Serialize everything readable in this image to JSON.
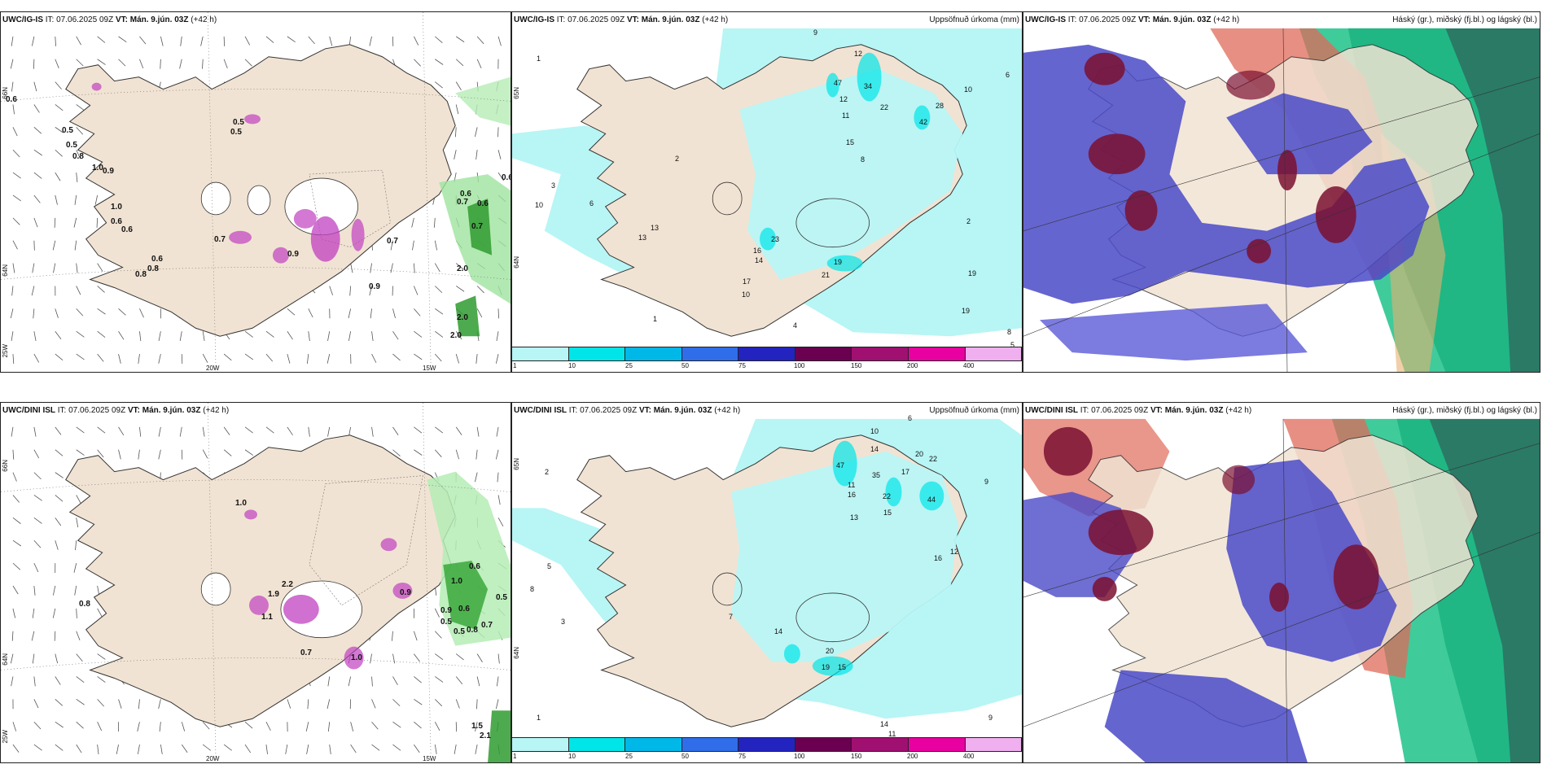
{
  "panels": [
    {
      "id": "top-left",
      "model": "UWC/IG-IS",
      "it": "IT: 07.06.2025 09Z",
      "vt_label": "VT:",
      "vt_value": "Mán. 9.jún. 03Z",
      "lead": "(+42 h)",
      "right_title": "",
      "lon_labels": [
        "20W",
        "15W"
      ],
      "lat_labels": [
        "66N",
        "64N",
        "25W"
      ],
      "values": [
        "0.6",
        "0.5",
        "0.5",
        "0.8",
        "1.0",
        "0.9",
        "1.0",
        "0.6",
        "0.6",
        "0.7",
        "0.6",
        "0.8",
        "0.8",
        "0.5",
        "0.5",
        "0.6",
        "0.7",
        "0.9",
        "0.9",
        "0.6",
        "0.7",
        "0.6",
        "0.7",
        "2.0",
        "2.0",
        "2.0"
      ]
    },
    {
      "id": "top-middle",
      "model": "UWC/IG-IS",
      "it": "IT: 07.06.2025 09Z",
      "vt_label": "VT:",
      "vt_value": "Mán. 9.jún. 03Z",
      "lead": "(+42 h)",
      "right_title": "Uppsöfnuð úrkoma (mm)",
      "lat_labels": [
        "65N",
        "64N"
      ],
      "colorbar_ticks": [
        "1",
        "10",
        "25",
        "50",
        "75",
        "100",
        "150",
        "200",
        "400"
      ],
      "colorbar_colors": [
        "#b8f5f5",
        "#00e5e8",
        "#00b8e8",
        "#2f6ee8",
        "#2323c0",
        "#6b0050",
        "#a01070",
        "#e800a0",
        "#f0b0f0"
      ],
      "values": [
        "9",
        "1",
        "12",
        "10",
        "47",
        "34",
        "22",
        "11",
        "28",
        "42",
        "12",
        "15",
        "8",
        "6",
        "2",
        "10",
        "13",
        "23",
        "16",
        "19",
        "21",
        "19",
        "8",
        "13",
        "17",
        "10",
        "14",
        "19",
        "4",
        "6",
        "3",
        "2",
        "5",
        "1"
      ]
    },
    {
      "id": "top-right",
      "model": "UWC/IG-IS",
      "it": "IT: 07.06.2025 09Z",
      "vt_label": "VT:",
      "vt_value": "Mán. 9.jún. 03Z",
      "lead": "(+42 h)",
      "right_title": "Háský (gr.), miðský (fj.bl.) og lágský (bl.)"
    },
    {
      "id": "bottom-left",
      "model": "UWC/DINI ISL",
      "it": "IT: 07.06.2025 09Z",
      "vt_label": "VT:",
      "vt_value": "Mán. 9.jún. 03Z",
      "lead": "(+42 h)",
      "right_title": "",
      "lon_labels": [
        "20W",
        "15W"
      ],
      "lat_labels": [
        "66N",
        "64N",
        "25W"
      ],
      "values": [
        "1.0",
        "0.8",
        "2.2",
        "1.9",
        "1.1",
        "0.9",
        "0.9",
        "0.6",
        "0.6",
        "0.5",
        "0.5",
        "0.5",
        "0.8",
        "0.7",
        "1.0",
        "1.5",
        "2.1",
        "1.0",
        "0.7"
      ]
    },
    {
      "id": "bottom-middle",
      "model": "UWC/DINI ISL",
      "it": "IT: 07.06.2025 09Z",
      "vt_label": "VT:",
      "vt_value": "Mán. 9.jún. 03Z",
      "lead": "(+42 h)",
      "right_title": "Uppsöfnuð úrkoma (mm)",
      "lat_labels": [
        "65N",
        "64N"
      ],
      "colorbar_ticks": [
        "1",
        "10",
        "25",
        "50",
        "75",
        "100",
        "150",
        "200",
        "400"
      ],
      "colorbar_colors": [
        "#b8f5f5",
        "#00e5e8",
        "#00b8e8",
        "#2f6ee8",
        "#2323c0",
        "#6b0050",
        "#a01070",
        "#e800a0",
        "#f0b0f0"
      ],
      "values": [
        "10",
        "47",
        "35",
        "22",
        "20",
        "14",
        "17",
        "44",
        "15",
        "22",
        "11",
        "16",
        "13",
        "9",
        "12",
        "16",
        "14",
        "20",
        "19",
        "15",
        "8",
        "5",
        "14",
        "11",
        "9",
        "1",
        "2",
        "3",
        "6",
        "7"
      ]
    },
    {
      "id": "bottom-right",
      "model": "UWC/DINI ISL",
      "it": "IT: 07.06.2025 09Z",
      "vt_label": "VT:",
      "vt_value": "Mán. 9.jún. 03Z",
      "lead": "(+42 h)",
      "right_title": "Háský (gr.), miðský (fj.bl.) og lágský (bl.)"
    }
  ],
  "colors": {
    "land": "#f1e3d3",
    "coast": "#333333",
    "sea": "#ffffff",
    "precip_light": "#b8f5f5",
    "green": "#6cd86c",
    "purple": "#c040c0",
    "low_cloud": "#4a4ac8",
    "mid_cloud": "#7a1030",
    "high_cloud": "#1fbf8a",
    "dark_high": "#1f5a4a"
  }
}
